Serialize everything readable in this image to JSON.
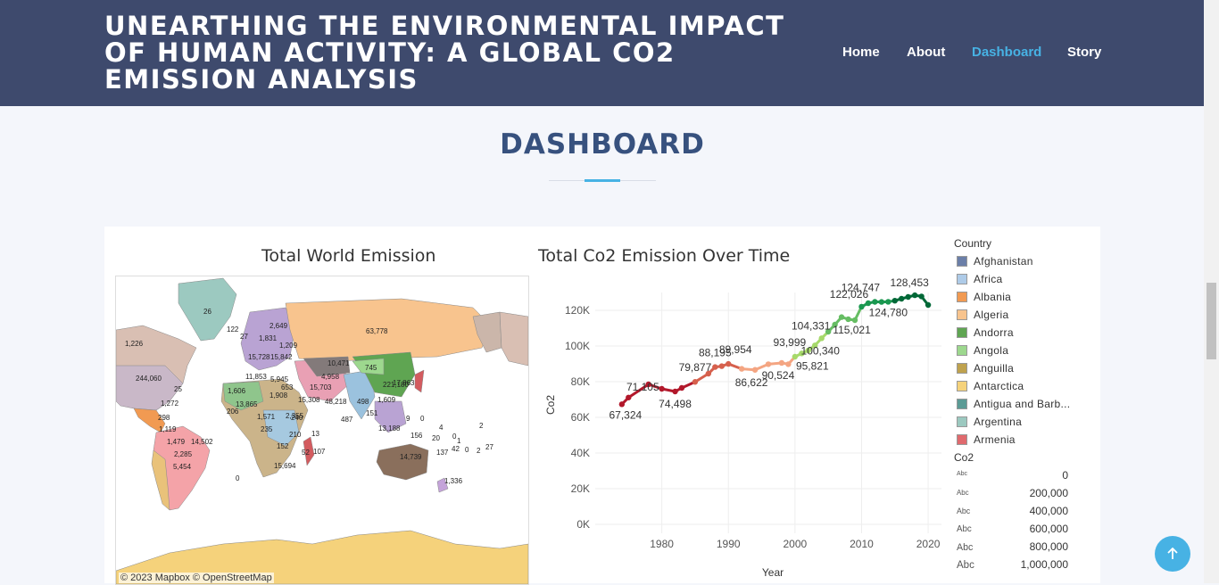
{
  "header": {
    "title": "UNEARTHING THE ENVIRONMENTAL IMPACT OF HUMAN ACTIVITY: A GLOBAL CO2 EMISSION ANALYSIS",
    "nav": [
      "Home",
      "About",
      "Dashboard",
      "Story"
    ],
    "active_nav": "Dashboard"
  },
  "section": {
    "title": "DASHBOARD"
  },
  "dashboard": {
    "map": {
      "title": "Total World Emission",
      "credit": "© 2023 Mapbox  © OpenStreetMap",
      "labels": [
        "26",
        "122",
        "2,649",
        "1,831",
        "1,209",
        "1,226",
        "27",
        "15,728",
        "15,842",
        "10,471",
        "63,778",
        "745",
        "244,060",
        "25",
        "4,958",
        "11,853",
        "5,945",
        "1,606",
        "15,703",
        "653",
        "221,180",
        "17,863",
        "13,865",
        "15,308",
        "1,908",
        "48,218",
        "1,609",
        "498",
        "151",
        "1,272",
        "206",
        "1,571",
        "9",
        "0",
        "2,355",
        "240",
        "487",
        "4",
        "2",
        "298",
        "1,119",
        "235",
        "13,188",
        "156",
        "20",
        "0",
        "1,479",
        "14,502",
        "210",
        "13",
        "1",
        "137",
        "42",
        "0",
        "2",
        "27",
        "2,285",
        "152",
        "52",
        "107",
        "14,739",
        "5,454",
        "15,694",
        "1,336",
        "0"
      ]
    },
    "chart_data": {
      "type": "line",
      "title": "Total Co2 Emission Over Time",
      "xlabel": "Year",
      "ylabel": "Co2",
      "xlim": [
        1970,
        2022
      ],
      "ylim": [
        0,
        130000
      ],
      "x_ticks": [
        "1980",
        "1990",
        "2000",
        "2010",
        "2020"
      ],
      "y_ticks": [
        "0K",
        "20K",
        "40K",
        "60K",
        "80K",
        "100K",
        "120K"
      ],
      "grid": true,
      "x": [
        1974,
        1975,
        1978,
        1980,
        1982,
        1983,
        1985,
        1987,
        1988,
        1989,
        1990,
        1992,
        1994,
        1996,
        1998,
        1999,
        2000,
        2001,
        2002,
        2003,
        2004,
        2005,
        2006,
        2007,
        2008,
        2009,
        2010,
        2011,
        2012,
        2013,
        2014,
        2015,
        2016,
        2017,
        2018,
        2019,
        2020
      ],
      "y": [
        67324,
        71105,
        78500,
        76000,
        74498,
        76500,
        79877,
        84500,
        88195,
        88700,
        89954,
        87200,
        86622,
        89800,
        90524,
        89800,
        93999,
        95821,
        97500,
        100340,
        104331,
        108000,
        112000,
        116200,
        115021,
        114500,
        122026,
        124000,
        124747,
        124700,
        124780,
        125400,
        126500,
        127500,
        128453,
        127800,
        123000
      ],
      "data_labels": [
        {
          "x": 1975,
          "y": 71105,
          "text": "71,105"
        },
        {
          "x": 1974,
          "y": 67324,
          "text": "67,324"
        },
        {
          "x": 1982,
          "y": 74498,
          "text": "74,498"
        },
        {
          "x": 1985,
          "y": 79877,
          "text": "79,877"
        },
        {
          "x": 1988,
          "y": 88195,
          "text": "88,195"
        },
        {
          "x": 1990,
          "y": 89954,
          "text": "89,954"
        },
        {
          "x": 1994,
          "y": 86622,
          "text": "86,622"
        },
        {
          "x": 1998,
          "y": 90524,
          "text": "90,524"
        },
        {
          "x": 2000,
          "y": 93999,
          "text": "93,999"
        },
        {
          "x": 2001,
          "y": 95821,
          "text": "95,821"
        },
        {
          "x": 2003,
          "y": 100340,
          "text": "100,340"
        },
        {
          "x": 2004,
          "y": 104331,
          "text": "104,331"
        },
        {
          "x": 2008,
          "y": 115021,
          "text": "115,021"
        },
        {
          "x": 2010,
          "y": 122026,
          "text": "122,026"
        },
        {
          "x": 2012,
          "y": 124747,
          "text": "124,747"
        },
        {
          "x": 2014,
          "y": 124780,
          "text": "124,780"
        },
        {
          "x": 2018,
          "y": 128453,
          "text": "128,453"
        }
      ],
      "line_colors": [
        "#b2182b",
        "#d6604d",
        "#f4a582",
        "#a6d96a",
        "#66bd63",
        "#1a9850",
        "#006837"
      ]
    },
    "legend": {
      "country_title": "Country",
      "countries": [
        {
          "name": "Afghanistan",
          "color": "#6b7fa8"
        },
        {
          "name": "Africa",
          "color": "#aecbe8"
        },
        {
          "name": "Albania",
          "color": "#f19a52"
        },
        {
          "name": "Algeria",
          "color": "#f8c48e"
        },
        {
          "name": "Andorra",
          "color": "#5fa552"
        },
        {
          "name": "Angola",
          "color": "#9dd88e"
        },
        {
          "name": "Anguilla",
          "color": "#bfa24e"
        },
        {
          "name": "Antarctica",
          "color": "#f5d27b"
        },
        {
          "name": "Antigua and Barb...",
          "color": "#5b9b95"
        },
        {
          "name": "Argentina",
          "color": "#9cc9c0"
        },
        {
          "name": "Armenia",
          "color": "#e06a6e"
        }
      ],
      "size_title": "Co2",
      "sizes": [
        "0",
        "200,000",
        "400,000",
        "600,000",
        "800,000",
        "1,000,000"
      ],
      "size_icon": "Abc"
    }
  },
  "scroll_top_icon": "arrow-up-icon"
}
